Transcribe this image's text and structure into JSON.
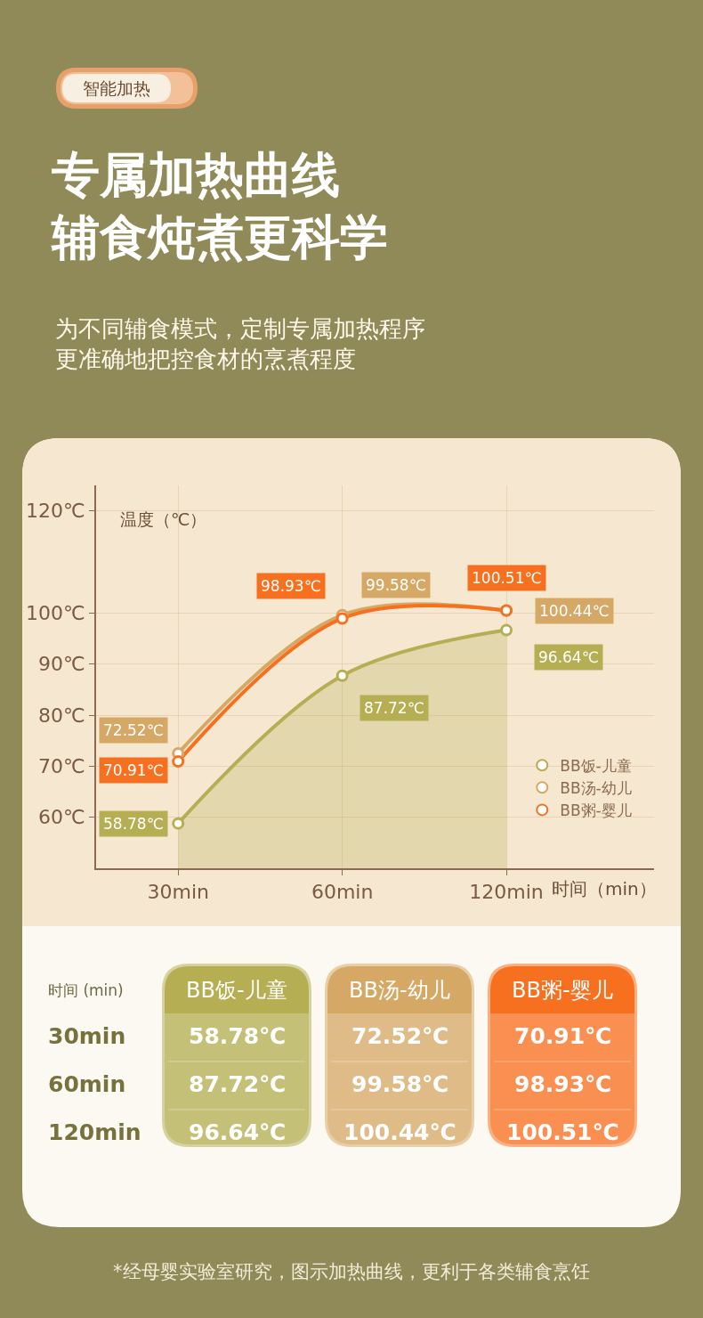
{
  "chart_data": {
    "type": "line",
    "title": "专属加热曲线辅食炖煮更科学",
    "subtitle": "为不同辅食模式，定制专属加热程序更准确地把控食材的烹煮程度",
    "xlabel": "时间（min）",
    "ylabel": "温度（℃）",
    "categories": [
      "30min",
      "60min",
      "120min"
    ],
    "ylim": [
      50,
      125
    ],
    "yticks": [
      {
        "value": 60,
        "label": "60℃"
      },
      {
        "value": 70,
        "label": "70℃"
      },
      {
        "value": 80,
        "label": "80℃"
      },
      {
        "value": 90,
        "label": "90℃"
      },
      {
        "value": 100,
        "label": "100℃"
      },
      {
        "value": 120,
        "label": "120℃"
      }
    ],
    "series": [
      {
        "name": "BB饭-儿童",
        "color": "#b5ae52",
        "type": "area",
        "values": [
          58.78,
          87.72,
          96.64
        ],
        "value_labels": [
          "58.78℃",
          "87.72℃",
          "96.64℃"
        ]
      },
      {
        "name": "BB汤-幼儿",
        "color": "#d6a865",
        "values": [
          72.52,
          99.58,
          100.44
        ],
        "value_labels": [
          "72.52℃",
          "99.58℃",
          "100.44℃"
        ]
      },
      {
        "name": "BB粥-婴儿",
        "color": "#f7701f",
        "values": [
          70.91,
          98.93,
          100.51
        ],
        "value_labels": [
          "70.91℃",
          "98.93℃",
          "100.51℃"
        ]
      }
    ],
    "legend": "bottom right",
    "grid": true,
    "marker": "circle",
    "line_style": "solid",
    "annotations": [
      "智能加热",
      "时间 (min)",
      "*经母婴实验室研究，图示加热曲线，更利于各类辅食烹饪"
    ]
  }
}
